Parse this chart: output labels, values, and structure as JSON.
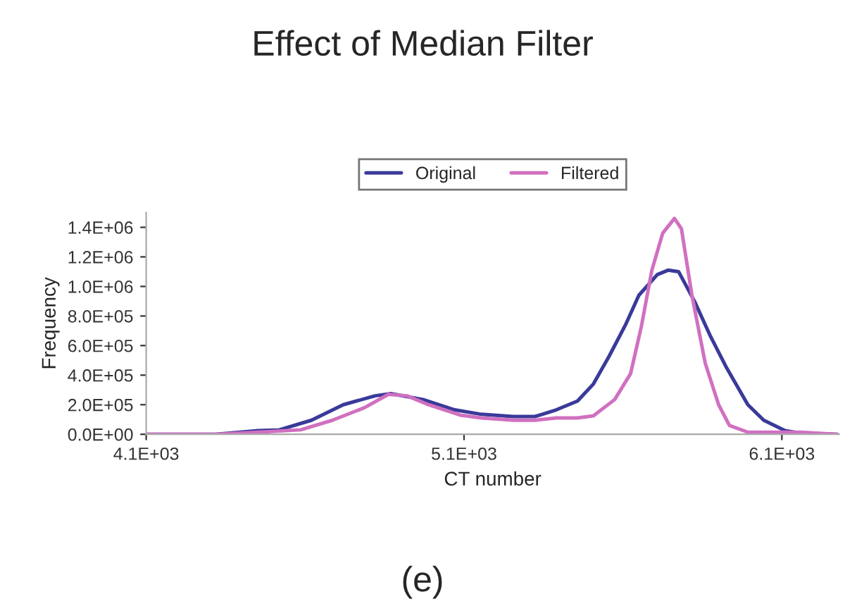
{
  "chart_data": {
    "type": "line",
    "title": "Effect of Median Filter",
    "xlabel": "CT number",
    "ylabel": "Frequency",
    "annotations": [
      "(e)"
    ],
    "xlim": [
      4100,
      6280
    ],
    "xticks": [
      {
        "value": 4100,
        "label": "4.1E+03"
      },
      {
        "value": 5100,
        "label": "5.1E+03"
      },
      {
        "value": 6100,
        "label": "6.1E+03"
      }
    ],
    "ylim": [
      0,
      1500000
    ],
    "yticks": [
      {
        "value": 0,
        "label": "0.0E+00"
      },
      {
        "value": 200000,
        "label": "2.0E+05"
      },
      {
        "value": 400000,
        "label": "4.0E+05"
      },
      {
        "value": 600000,
        "label": "6.0E+05"
      },
      {
        "value": 800000,
        "label": "8.0E+05"
      },
      {
        "value": 1000000,
        "label": "1.0E+06"
      },
      {
        "value": 1200000,
        "label": "1.2E+06"
      },
      {
        "value": 1400000,
        "label": "1.4E+06"
      }
    ],
    "grid": false,
    "legend": "top",
    "marker": "none",
    "line_style": "solid",
    "series": [
      {
        "name": "Original",
        "color": "#3a3a9a",
        "x": [
          4100,
          4318,
          4452,
          4519,
          4620,
          4720,
          4820,
          4870,
          4971,
          5071,
          5155,
          5256,
          5323,
          5390,
          5457,
          5507,
          5557,
          5608,
          5650,
          5708,
          5742,
          5775,
          5825,
          5876,
          5926,
          5993,
          6043,
          6110,
          6160,
          6274
        ],
        "values": [
          0,
          0,
          25000,
          30000,
          95000,
          200000,
          260000,
          275000,
          235000,
          165000,
          135000,
          120000,
          120000,
          165000,
          225000,
          340000,
          530000,
          740000,
          940000,
          1080000,
          1110000,
          1100000,
          900000,
          660000,
          450000,
          200000,
          95000,
          25000,
          7000,
          0
        ]
      },
      {
        "name": "Filtered",
        "color": "#d070c0",
        "x": [
          4100,
          4318,
          4452,
          4586,
          4686,
          4787,
          4862,
          4921,
          4988,
          5088,
          5155,
          5256,
          5323,
          5390,
          5457,
          5507,
          5574,
          5624,
          5658,
          5691,
          5725,
          5762,
          5784,
          5817,
          5859,
          5901,
          5935,
          5993,
          6160,
          6274
        ],
        "values": [
          0,
          0,
          14000,
          30000,
          95000,
          180000,
          270000,
          260000,
          200000,
          130000,
          110000,
          95000,
          95000,
          110000,
          110000,
          125000,
          235000,
          410000,
          730000,
          1110000,
          1360000,
          1460000,
          1390000,
          940000,
          480000,
          200000,
          60000,
          14000,
          14000,
          0
        ]
      }
    ]
  }
}
